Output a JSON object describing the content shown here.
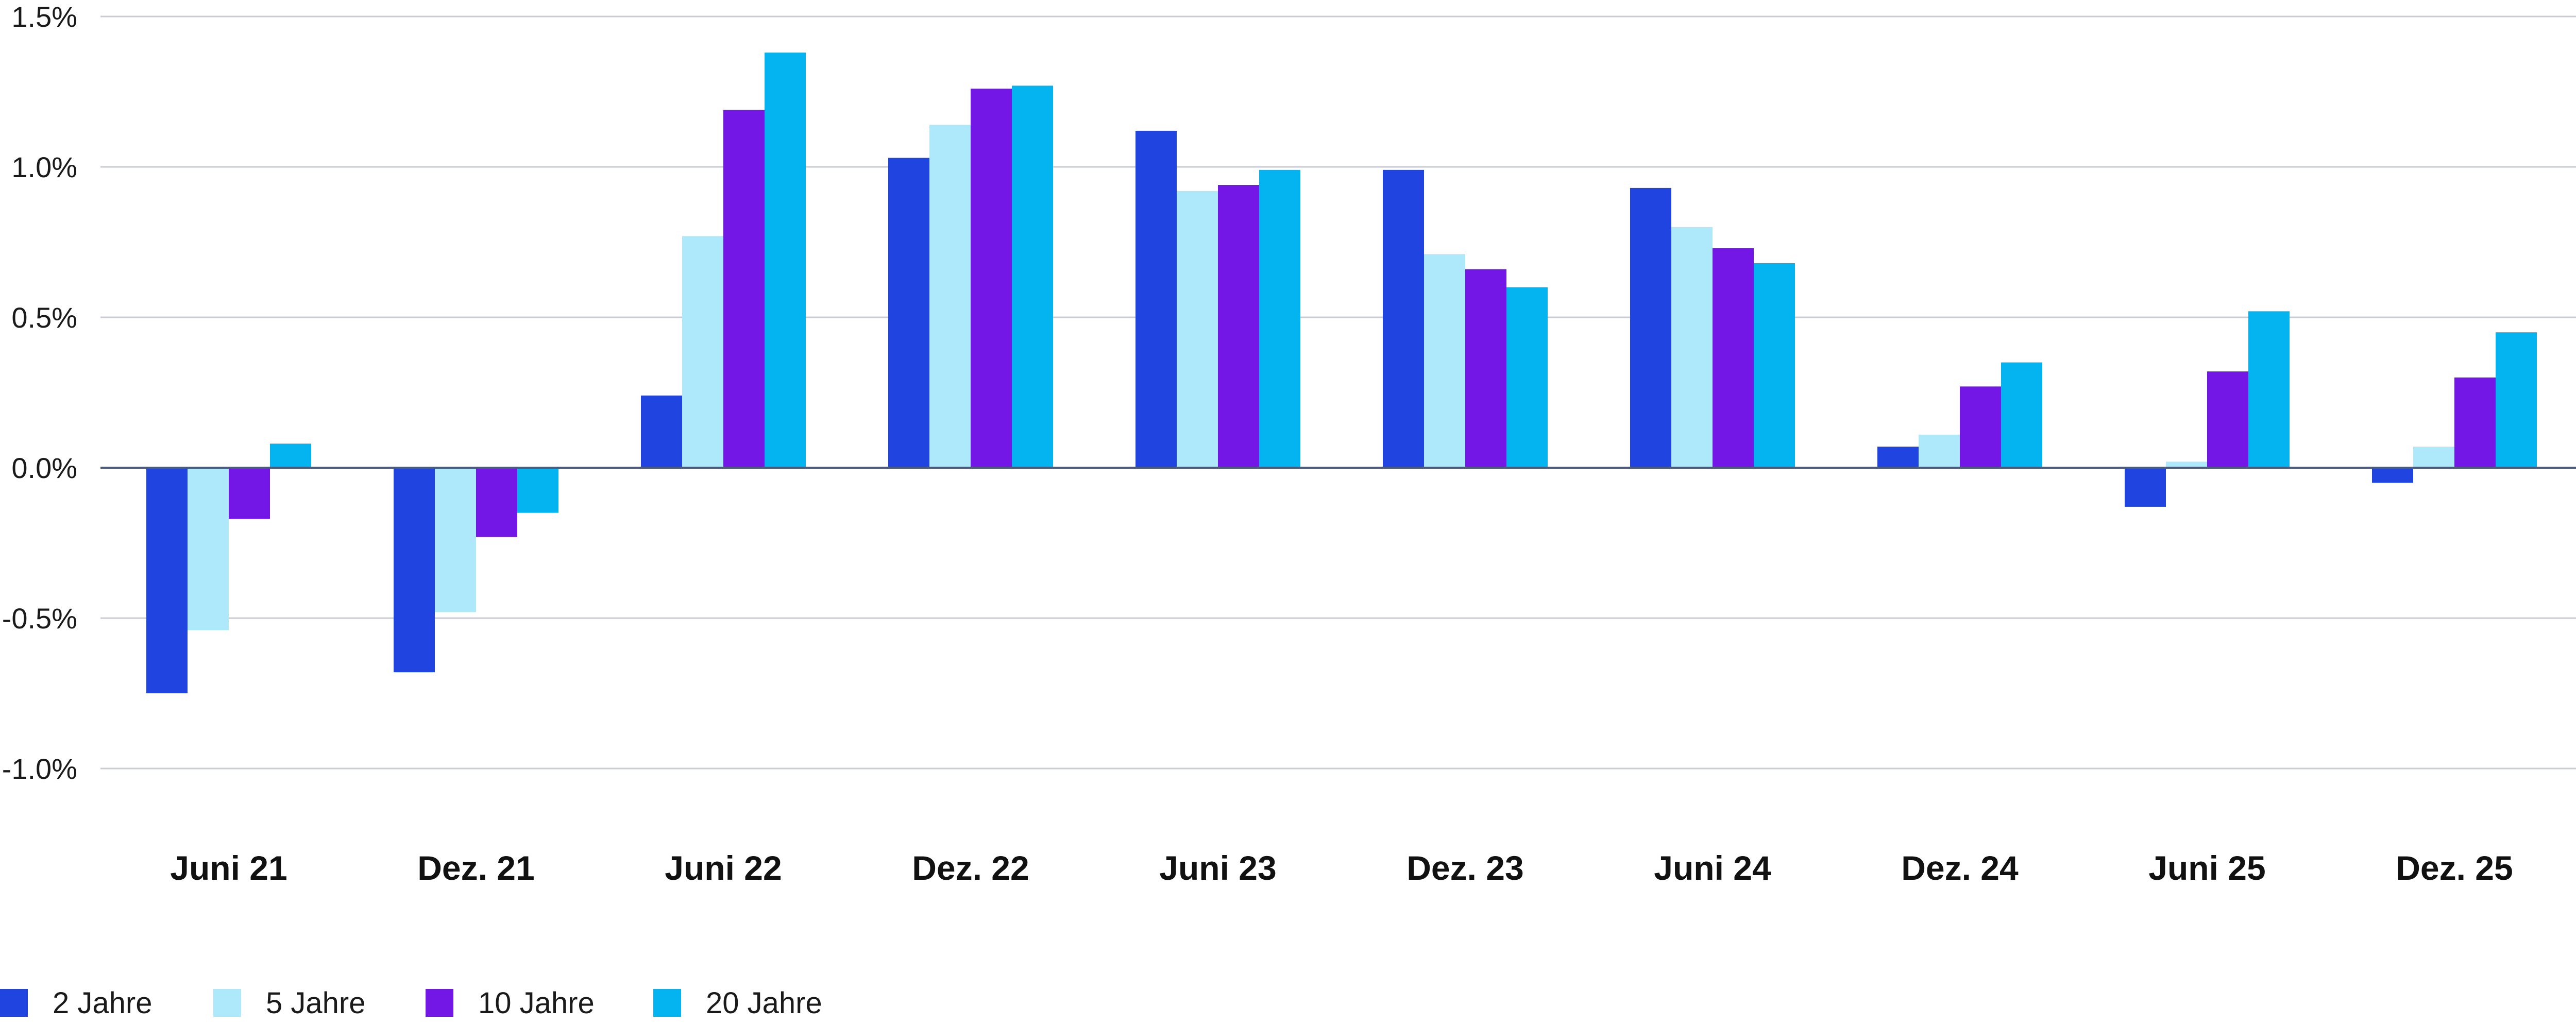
{
  "chart_data": {
    "type": "bar",
    "categories": [
      "Juni 21",
      "Dez. 21",
      "Juni 22",
      "Dez. 22",
      "Juni 23",
      "Dez. 23",
      "Juni 24",
      "Dez. 24",
      "Juni 25",
      "Dez. 25"
    ],
    "series": [
      {
        "name": "2 Jahre",
        "color": "#1f44e0",
        "values": [
          -0.75,
          -0.68,
          0.24,
          1.03,
          1.12,
          0.99,
          0.93,
          0.07,
          -0.13,
          -0.05
        ]
      },
      {
        "name": "5 Jahre",
        "color": "#ade8fb",
        "values": [
          -0.54,
          -0.48,
          0.77,
          1.14,
          0.92,
          0.71,
          0.8,
          0.11,
          0.02,
          0.07
        ]
      },
      {
        "name": "10 Jahre",
        "color": "#7217e6",
        "values": [
          -0.17,
          -0.23,
          1.19,
          1.26,
          0.94,
          0.66,
          0.73,
          0.27,
          0.32,
          0.3
        ]
      },
      {
        "name": "20 Jahre",
        "color": "#04b4f1",
        "values": [
          0.08,
          -0.15,
          1.38,
          1.27,
          0.99,
          0.6,
          0.68,
          0.35,
          0.52,
          0.45
        ]
      }
    ],
    "y_ticks": [
      "1.5%",
      "1.0%",
      "0.5%",
      "0.0%",
      "-0.5%",
      "-1.0%"
    ],
    "y_tick_values": [
      1.5,
      1.0,
      0.5,
      0.0,
      -0.5,
      -1.0
    ],
    "ylim": [
      -1.0,
      1.5
    ],
    "title": "",
    "xlabel": "",
    "ylabel": "",
    "grid": true,
    "legend_position": "bottom-left"
  }
}
